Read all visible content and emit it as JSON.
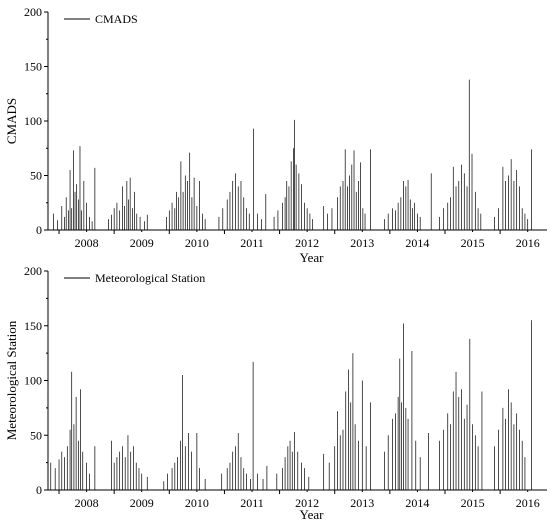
{
  "chart_data": [
    {
      "type": "bar",
      "ylabel": "CMADS",
      "xlabel": "Year",
      "ylim": [
        0,
        200
      ],
      "yticks": [
        0,
        50,
        100,
        150,
        200
      ],
      "xticks": [
        "2008",
        "2009",
        "2010",
        "2011",
        "2012",
        "2013",
        "2014",
        "2015",
        "2016"
      ],
      "xlim": [
        2007.75,
        2016.8
      ],
      "legend": {
        "position": "top-left",
        "label": "CMADS"
      },
      "series": [
        {
          "name": "CMADS",
          "points": [
            [
              2007.85,
              15
            ],
            [
              2007.92,
              9
            ],
            [
              2008.0,
              22
            ],
            [
              2008.05,
              12
            ],
            [
              2008.08,
              30
            ],
            [
              2008.12,
              18
            ],
            [
              2008.15,
              55
            ],
            [
              2008.18,
              20
            ],
            [
              2008.21,
              73
            ],
            [
              2008.24,
              35
            ],
            [
              2008.27,
              42
            ],
            [
              2008.3,
              28
            ],
            [
              2008.33,
              77
            ],
            [
              2008.36,
              18
            ],
            [
              2008.4,
              45
            ],
            [
              2008.45,
              25
            ],
            [
              2008.5,
              12
            ],
            [
              2008.55,
              8
            ],
            [
              2008.6,
              57
            ],
            [
              2008.85,
              10
            ],
            [
              2008.9,
              14
            ],
            [
              2008.95,
              20
            ],
            [
              2009.0,
              25
            ],
            [
              2009.05,
              18
            ],
            [
              2009.1,
              40
            ],
            [
              2009.14,
              22
            ],
            [
              2009.18,
              45
            ],
            [
              2009.21,
              28
            ],
            [
              2009.24,
              48
            ],
            [
              2009.28,
              20
            ],
            [
              2009.32,
              35
            ],
            [
              2009.36,
              15
            ],
            [
              2009.42,
              12
            ],
            [
              2009.5,
              8
            ],
            [
              2009.55,
              14
            ],
            [
              2009.9,
              12
            ],
            [
              2009.95,
              18
            ],
            [
              2010.0,
              25
            ],
            [
              2010.05,
              20
            ],
            [
              2010.08,
              35
            ],
            [
              2010.12,
              30
            ],
            [
              2010.16,
              63
            ],
            [
              2010.2,
              35
            ],
            [
              2010.24,
              50
            ],
            [
              2010.28,
              45
            ],
            [
              2010.32,
              71
            ],
            [
              2010.36,
              30
            ],
            [
              2010.4,
              48
            ],
            [
              2010.45,
              22
            ],
            [
              2010.5,
              45
            ],
            [
              2010.55,
              15
            ],
            [
              2010.6,
              10
            ],
            [
              2010.85,
              12
            ],
            [
              2010.92,
              20
            ],
            [
              2011.0,
              28
            ],
            [
              2011.05,
              35
            ],
            [
              2011.1,
              45
            ],
            [
              2011.15,
              52
            ],
            [
              2011.2,
              40
            ],
            [
              2011.25,
              45
            ],
            [
              2011.3,
              30
            ],
            [
              2011.35,
              20
            ],
            [
              2011.4,
              15
            ],
            [
              2011.48,
              93
            ],
            [
              2011.55,
              15
            ],
            [
              2011.62,
              10
            ],
            [
              2011.7,
              33
            ],
            [
              2011.85,
              12
            ],
            [
              2011.92,
              18
            ],
            [
              2012.0,
              25
            ],
            [
              2012.05,
              30
            ],
            [
              2012.08,
              45
            ],
            [
              2012.12,
              40
            ],
            [
              2012.16,
              63
            ],
            [
              2012.2,
              75
            ],
            [
              2012.22,
              101
            ],
            [
              2012.25,
              60
            ],
            [
              2012.3,
              52
            ],
            [
              2012.35,
              42
            ],
            [
              2012.4,
              25
            ],
            [
              2012.45,
              20
            ],
            [
              2012.5,
              15
            ],
            [
              2012.55,
              10
            ],
            [
              2012.75,
              22
            ],
            [
              2012.82,
              15
            ],
            [
              2012.9,
              20
            ],
            [
              2013.0,
              30
            ],
            [
              2013.05,
              40
            ],
            [
              2013.1,
              45
            ],
            [
              2013.14,
              74
            ],
            [
              2013.18,
              40
            ],
            [
              2013.22,
              50
            ],
            [
              2013.26,
              60
            ],
            [
              2013.3,
              73
            ],
            [
              2013.34,
              35
            ],
            [
              2013.38,
              45
            ],
            [
              2013.42,
              62
            ],
            [
              2013.46,
              20
            ],
            [
              2013.5,
              15
            ],
            [
              2013.6,
              74
            ],
            [
              2013.85,
              10
            ],
            [
              2013.92,
              15
            ],
            [
              2014.0,
              20
            ],
            [
              2014.05,
              18
            ],
            [
              2014.1,
              25
            ],
            [
              2014.15,
              30
            ],
            [
              2014.2,
              45
            ],
            [
              2014.24,
              40
            ],
            [
              2014.28,
              46
            ],
            [
              2014.32,
              28
            ],
            [
              2014.36,
              20
            ],
            [
              2014.4,
              25
            ],
            [
              2014.45,
              15
            ],
            [
              2014.5,
              12
            ],
            [
              2014.7,
              52
            ],
            [
              2014.85,
              12
            ],
            [
              2014.92,
              20
            ],
            [
              2015.0,
              25
            ],
            [
              2015.05,
              30
            ],
            [
              2015.1,
              58
            ],
            [
              2015.15,
              40
            ],
            [
              2015.2,
              45
            ],
            [
              2015.25,
              60
            ],
            [
              2015.3,
              52
            ],
            [
              2015.35,
              40
            ],
            [
              2015.39,
              138
            ],
            [
              2015.44,
              70
            ],
            [
              2015.5,
              35
            ],
            [
              2015.55,
              20
            ],
            [
              2015.6,
              15
            ],
            [
              2015.85,
              12
            ],
            [
              2015.92,
              20
            ],
            [
              2016.0,
              58
            ],
            [
              2016.05,
              45
            ],
            [
              2016.1,
              50
            ],
            [
              2016.15,
              65
            ],
            [
              2016.2,
              45
            ],
            [
              2016.25,
              55
            ],
            [
              2016.3,
              40
            ],
            [
              2016.35,
              20
            ],
            [
              2016.4,
              15
            ],
            [
              2016.45,
              10
            ],
            [
              2016.52,
              74
            ]
          ]
        }
      ]
    },
    {
      "type": "bar",
      "ylabel": "Meteorological Station",
      "xlabel": "Year",
      "ylim": [
        0,
        200
      ],
      "yticks": [
        0,
        50,
        100,
        150,
        200
      ],
      "xticks": [
        "2008",
        "2009",
        "2010",
        "2011",
        "2012",
        "2013",
        "2014",
        "2015",
        "2016"
      ],
      "xlim": [
        2007.75,
        2016.8
      ],
      "legend": {
        "position": "top-left",
        "label": "Meteorological Station"
      },
      "series": [
        {
          "name": "Meteorological Station",
          "points": [
            [
              2007.8,
              25
            ],
            [
              2007.88,
              20
            ],
            [
              2007.95,
              28
            ],
            [
              2008.0,
              35
            ],
            [
              2008.05,
              30
            ],
            [
              2008.1,
              40
            ],
            [
              2008.15,
              55
            ],
            [
              2008.18,
              108
            ],
            [
              2008.22,
              60
            ],
            [
              2008.26,
              85
            ],
            [
              2008.3,
              45
            ],
            [
              2008.34,
              92
            ],
            [
              2008.38,
              35
            ],
            [
              2008.45,
              25
            ],
            [
              2008.5,
              15
            ],
            [
              2008.6,
              40
            ],
            [
              2008.9,
              45
            ],
            [
              2008.95,
              25
            ],
            [
              2009.0,
              30
            ],
            [
              2009.05,
              35
            ],
            [
              2009.1,
              40
            ],
            [
              2009.15,
              30
            ],
            [
              2009.2,
              50
            ],
            [
              2009.25,
              35
            ],
            [
              2009.3,
              40
            ],
            [
              2009.35,
              25
            ],
            [
              2009.4,
              20
            ],
            [
              2009.45,
              15
            ],
            [
              2009.55,
              12
            ],
            [
              2009.85,
              8
            ],
            [
              2009.92,
              15
            ],
            [
              2010.0,
              20
            ],
            [
              2010.05,
              25
            ],
            [
              2010.1,
              30
            ],
            [
              2010.15,
              45
            ],
            [
              2010.19,
              105
            ],
            [
              2010.24,
              40
            ],
            [
              2010.3,
              52
            ],
            [
              2010.35,
              35
            ],
            [
              2010.45,
              52
            ],
            [
              2010.5,
              20
            ],
            [
              2010.6,
              10
            ],
            [
              2010.9,
              15
            ],
            [
              2011.0,
              20
            ],
            [
              2011.05,
              25
            ],
            [
              2011.1,
              35
            ],
            [
              2011.15,
              40
            ],
            [
              2011.2,
              52
            ],
            [
              2011.25,
              30
            ],
            [
              2011.3,
              20
            ],
            [
              2011.35,
              15
            ],
            [
              2011.42,
              10
            ],
            [
              2011.47,
              117
            ],
            [
              2011.55,
              15
            ],
            [
              2011.65,
              10
            ],
            [
              2011.72,
              22
            ],
            [
              2011.9,
              15
            ],
            [
              2012.0,
              20
            ],
            [
              2012.05,
              30
            ],
            [
              2012.1,
              40
            ],
            [
              2012.14,
              45
            ],
            [
              2012.18,
              35
            ],
            [
              2012.22,
              53
            ],
            [
              2012.28,
              35
            ],
            [
              2012.35,
              25
            ],
            [
              2012.4,
              20
            ],
            [
              2012.48,
              12
            ],
            [
              2012.75,
              33
            ],
            [
              2012.85,
              25
            ],
            [
              2012.95,
              40
            ],
            [
              2013.0,
              72
            ],
            [
              2013.05,
              50
            ],
            [
              2013.1,
              55
            ],
            [
              2013.15,
              90
            ],
            [
              2013.2,
              110
            ],
            [
              2013.24,
              80
            ],
            [
              2013.28,
              125
            ],
            [
              2013.32,
              60
            ],
            [
              2013.38,
              45
            ],
            [
              2013.45,
              100
            ],
            [
              2013.52,
              40
            ],
            [
              2013.6,
              80
            ],
            [
              2013.85,
              35
            ],
            [
              2013.92,
              50
            ],
            [
              2014.0,
              65
            ],
            [
              2014.05,
              70
            ],
            [
              2014.1,
              85
            ],
            [
              2014.13,
              120
            ],
            [
              2014.16,
              80
            ],
            [
              2014.2,
              152
            ],
            [
              2014.24,
              75
            ],
            [
              2014.28,
              65
            ],
            [
              2014.35,
              127
            ],
            [
              2014.42,
              45
            ],
            [
              2014.5,
              30
            ],
            [
              2014.65,
              52
            ],
            [
              2014.85,
              45
            ],
            [
              2014.92,
              55
            ],
            [
              2015.0,
              70
            ],
            [
              2015.05,
              60
            ],
            [
              2015.1,
              90
            ],
            [
              2015.15,
              108
            ],
            [
              2015.2,
              85
            ],
            [
              2015.25,
              92
            ],
            [
              2015.3,
              65
            ],
            [
              2015.35,
              78
            ],
            [
              2015.4,
              138
            ],
            [
              2015.45,
              60
            ],
            [
              2015.5,
              50
            ],
            [
              2015.55,
              40
            ],
            [
              2015.62,
              90
            ],
            [
              2015.85,
              40
            ],
            [
              2015.92,
              55
            ],
            [
              2016.0,
              75
            ],
            [
              2016.05,
              65
            ],
            [
              2016.1,
              92
            ],
            [
              2016.15,
              80
            ],
            [
              2016.2,
              60
            ],
            [
              2016.25,
              70
            ],
            [
              2016.3,
              55
            ],
            [
              2016.35,
              45
            ],
            [
              2016.4,
              30
            ],
            [
              2016.52,
              155
            ]
          ]
        }
      ]
    }
  ]
}
